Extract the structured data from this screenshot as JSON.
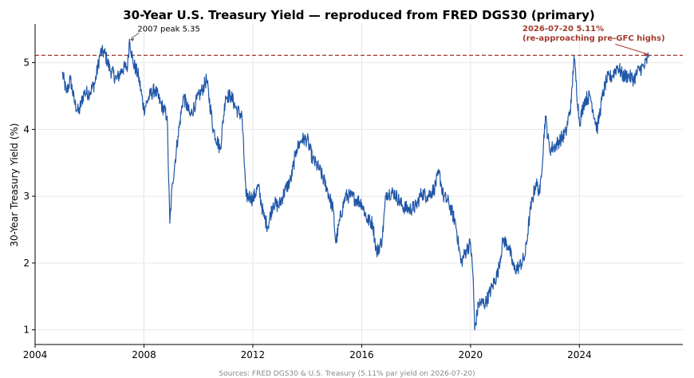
{
  "chart_data": {
    "type": "line",
    "title": "30-Year U.S. Treasury Yield  —  reproduced from FRED DGS30 (primary)",
    "ylabel": "30-Year Treasury Yield (%)",
    "xlabel": "",
    "xlim": [
      2004.0,
      2027.8
    ],
    "ylim": [
      0.78,
      5.58
    ],
    "xticks": [
      2004,
      2008,
      2012,
      2016,
      2020,
      2024
    ],
    "xtick_labels": [
      "2004",
      "2008",
      "2012",
      "2016",
      "2020",
      "2024"
    ],
    "yticks": [
      1,
      2,
      3,
      4,
      5
    ],
    "ytick_labels": [
      "1",
      "2",
      "3",
      "4",
      "5"
    ],
    "grid": true,
    "series": [
      {
        "name": "DGS30",
        "color": "#2057a8",
        "points": [
          [
            2005.0,
            4.85
          ],
          [
            2005.15,
            4.55
          ],
          [
            2005.3,
            4.75
          ],
          [
            2005.45,
            4.4
          ],
          [
            2005.6,
            4.25
          ],
          [
            2005.8,
            4.55
          ],
          [
            2006.0,
            4.55
          ],
          [
            2006.2,
            4.7
          ],
          [
            2006.4,
            5.15
          ],
          [
            2006.55,
            5.15
          ],
          [
            2006.75,
            4.9
          ],
          [
            2007.0,
            4.75
          ],
          [
            2007.2,
            4.9
          ],
          [
            2007.4,
            4.95
          ],
          [
            2007.47,
            5.35
          ],
          [
            2007.6,
            5.0
          ],
          [
            2007.8,
            4.8
          ],
          [
            2008.0,
            4.3
          ],
          [
            2008.2,
            4.5
          ],
          [
            2008.4,
            4.6
          ],
          [
            2008.6,
            4.4
          ],
          [
            2008.85,
            4.2
          ],
          [
            2008.95,
            2.6
          ],
          [
            2009.05,
            3.2
          ],
          [
            2009.25,
            3.9
          ],
          [
            2009.45,
            4.5
          ],
          [
            2009.7,
            4.2
          ],
          [
            2009.9,
            4.4
          ],
          [
            2010.15,
            4.6
          ],
          [
            2010.3,
            4.75
          ],
          [
            2010.55,
            4.0
          ],
          [
            2010.8,
            3.7
          ],
          [
            2011.0,
            4.5
          ],
          [
            2011.2,
            4.5
          ],
          [
            2011.4,
            4.3
          ],
          [
            2011.6,
            4.2
          ],
          [
            2011.75,
            3.0
          ],
          [
            2011.9,
            3.0
          ],
          [
            2012.0,
            2.95
          ],
          [
            2012.2,
            3.15
          ],
          [
            2012.4,
            2.7
          ],
          [
            2012.55,
            2.55
          ],
          [
            2012.75,
            2.9
          ],
          [
            2012.95,
            2.85
          ],
          [
            2013.2,
            3.1
          ],
          [
            2013.4,
            3.25
          ],
          [
            2013.6,
            3.7
          ],
          [
            2013.8,
            3.85
          ],
          [
            2014.0,
            3.85
          ],
          [
            2014.2,
            3.55
          ],
          [
            2014.45,
            3.4
          ],
          [
            2014.7,
            3.15
          ],
          [
            2014.95,
            2.8
          ],
          [
            2015.05,
            2.3
          ],
          [
            2015.2,
            2.65
          ],
          [
            2015.4,
            3.0
          ],
          [
            2015.6,
            3.0
          ],
          [
            2015.8,
            2.95
          ],
          [
            2016.0,
            2.9
          ],
          [
            2016.2,
            2.65
          ],
          [
            2016.4,
            2.6
          ],
          [
            2016.55,
            2.15
          ],
          [
            2016.75,
            2.35
          ],
          [
            2016.9,
            3.05
          ],
          [
            2017.2,
            3.05
          ],
          [
            2017.5,
            2.85
          ],
          [
            2017.75,
            2.8
          ],
          [
            2018.0,
            2.85
          ],
          [
            2018.2,
            3.05
          ],
          [
            2018.4,
            3.0
          ],
          [
            2018.65,
            3.1
          ],
          [
            2018.85,
            3.35
          ],
          [
            2019.0,
            3.0
          ],
          [
            2019.2,
            2.9
          ],
          [
            2019.45,
            2.6
          ],
          [
            2019.65,
            2.0
          ],
          [
            2019.85,
            2.2
          ],
          [
            2020.0,
            2.3
          ],
          [
            2020.1,
            1.75
          ],
          [
            2020.15,
            1.0
          ],
          [
            2020.3,
            1.4
          ],
          [
            2020.55,
            1.4
          ],
          [
            2020.8,
            1.65
          ],
          [
            2021.0,
            1.85
          ],
          [
            2021.2,
            2.35
          ],
          [
            2021.4,
            2.25
          ],
          [
            2021.6,
            1.9
          ],
          [
            2021.8,
            1.95
          ],
          [
            2022.0,
            2.1
          ],
          [
            2022.2,
            2.8
          ],
          [
            2022.4,
            3.2
          ],
          [
            2022.55,
            3.05
          ],
          [
            2022.75,
            4.2
          ],
          [
            2022.9,
            3.7
          ],
          [
            2023.1,
            3.75
          ],
          [
            2023.3,
            3.85
          ],
          [
            2023.5,
            3.95
          ],
          [
            2023.7,
            4.4
          ],
          [
            2023.8,
            5.1
          ],
          [
            2024.0,
            4.1
          ],
          [
            2024.2,
            4.45
          ],
          [
            2024.4,
            4.5
          ],
          [
            2024.65,
            4.0
          ],
          [
            2024.85,
            4.5
          ],
          [
            2025.0,
            4.75
          ],
          [
            2025.2,
            4.8
          ],
          [
            2025.4,
            4.95
          ],
          [
            2025.6,
            4.8
          ],
          [
            2025.8,
            4.8
          ],
          [
            2026.0,
            4.75
          ],
          [
            2026.2,
            4.9
          ],
          [
            2026.4,
            4.95
          ],
          [
            2026.55,
            5.11
          ]
        ]
      }
    ],
    "reference_line": {
      "y": 5.11,
      "color": "#a23b2c",
      "style": "dashed"
    },
    "annotations": [
      {
        "text": "2007 peak 5.35",
        "target": [
          2007.47,
          5.35
        ],
        "color": "#000000"
      },
      {
        "text": "2026-07-20  5.11%",
        "text2": "(re-approaching pre-GFC highs)",
        "target": [
          2026.55,
          5.11
        ],
        "color": "#a23b2c"
      }
    ],
    "source": "Sources: FRED DGS30 & U.S. Treasury (5.11% par yield on 2026-07-20)"
  }
}
